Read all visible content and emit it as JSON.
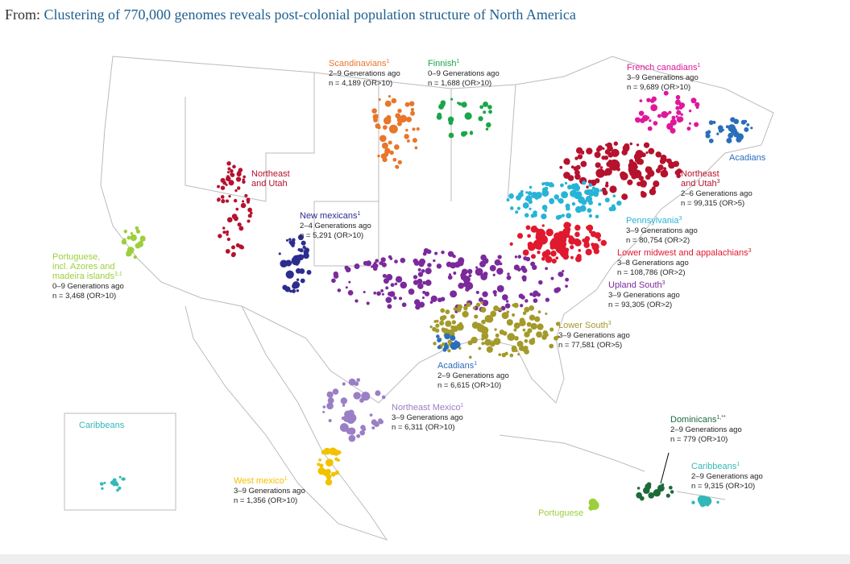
{
  "header": {
    "prefix": "From:",
    "link": "Clustering of 770,000 genomes reveals post-colonial population structure of North America"
  },
  "labels": [
    {
      "name": "Scandinavians",
      "sup": "1",
      "color": "#e8762b",
      "lines": [
        "2–9 Generations ago",
        "n = 4,189 (OR>10)"
      ]
    },
    {
      "name": "Finnish",
      "sup": "1",
      "color": "#1aa64a",
      "lines": [
        "0–9 Generations ago",
        "n = 1,688 (OR>10)"
      ]
    },
    {
      "name": "French canadians",
      "sup": "1",
      "color": "#e0179b",
      "lines": [
        "3–9 Generations ago",
        "n = 9,689 (OR>10)"
      ]
    },
    {
      "name": "Acadians",
      "sup": "",
      "color": "#2a6ebb",
      "lines": []
    },
    {
      "name": "Northeast",
      "sup": "",
      "color": "#b5122e",
      "lines": [
        "and Utah"
      ]
    },
    {
      "name": "Northeast",
      "sup": "",
      "color": "#b5122e",
      "lines": [
        "and Utah",
        "2–6 Generations ago",
        "n = 99,315 (OR>5)"
      ],
      "sup2": "3"
    },
    {
      "name": "New mexicans",
      "sup": "1",
      "color": "#2c2d8f",
      "lines": [
        "2–4 Generations ago",
        "n = 5,291 (OR>10)"
      ]
    },
    {
      "name": "Pennsylvania",
      "sup": "3",
      "color": "#27b4d6",
      "lines": [
        "3–9 Generations ago",
        "n = 80,754 (OR>2)"
      ]
    },
    {
      "name": "Lower midwest and appalachians",
      "sup": "3",
      "color": "#e0192e",
      "lines": [
        "3–8 Generations ago",
        "n = 108,786 (OR>2)"
      ]
    },
    {
      "name": "Portuguese,",
      "sup": "",
      "color": "#9dcf3b",
      "lines": [
        "incl. Azores and",
        "madeira islands",
        "0–9 Generations ago",
        "n = 3,468 (OR>10)"
      ],
      "sup2": "3,‡"
    },
    {
      "name": "Upland South",
      "sup": "3",
      "color": "#7b2a9b",
      "lines": [
        "3–9 Generations ago",
        "n = 93,305 (OR>2)"
      ]
    },
    {
      "name": "Lower South",
      "sup": "3",
      "color": "#a39a2a",
      "lines": [
        "3–9 Generations ago",
        "n = 77,581 (OR>5)"
      ]
    },
    {
      "name": "Acadians",
      "sup": "1",
      "color": "#2a6ebb",
      "lines": [
        "2–9 Generations ago",
        "n = 6,615 (OR>10)"
      ]
    },
    {
      "name": "Northeast Mexico",
      "sup": "1",
      "color": "#9b7fc5",
      "lines": [
        "3–9 Generations ago",
        "n = 6,311 (OR>10)"
      ]
    },
    {
      "name": "Caribbeans",
      "sup": "",
      "color": "#33b8b8",
      "lines": []
    },
    {
      "name": "Dominicans",
      "sup": "1,**",
      "color": "#1e6b3a",
      "lines": [
        "2–9 Generations ago",
        "n = 779 (OR>10)"
      ]
    },
    {
      "name": "West mexico",
      "sup": "1",
      "color": "#f2c200",
      "lines": [
        "3–9 Generations ago",
        "n = 1,356 (OR>10)"
      ]
    },
    {
      "name": "Caribbeans",
      "sup": "1",
      "color": "#33b8b8",
      "lines": [
        "2–9 Generations ago",
        "n = 9,315 (OR>10)"
      ]
    },
    {
      "name": "Portuguese",
      "sup": "",
      "color": "#9dcf3b",
      "lines": []
    }
  ]
}
